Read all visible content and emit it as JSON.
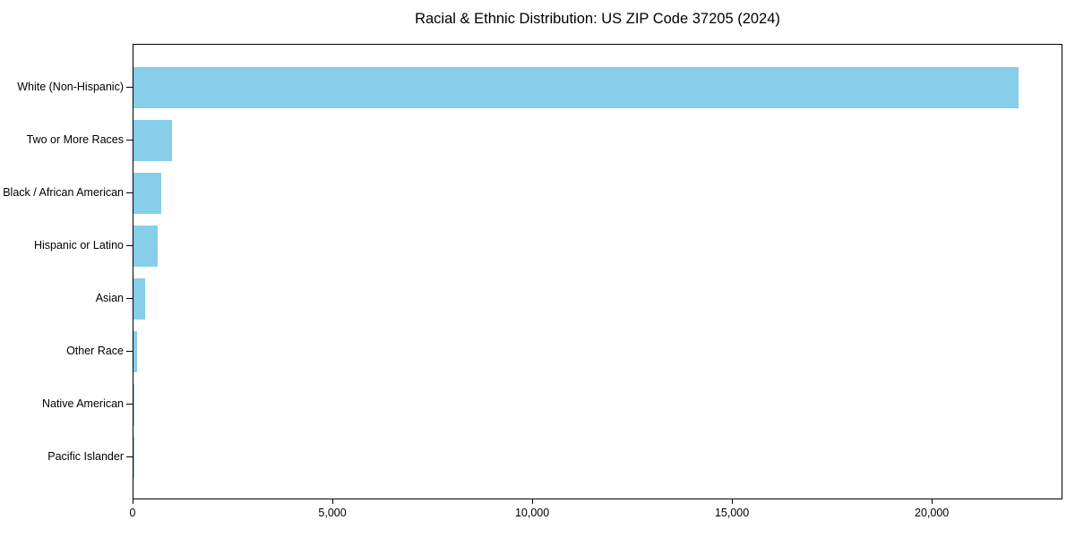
{
  "title": "Racial & Ethnic Distribution: US ZIP Code 37205 (2024)",
  "chart_data": {
    "type": "bar",
    "orientation": "horizontal",
    "title": "Racial & Ethnic Distribution: US ZIP Code 37205 (2024)",
    "xlabel": "",
    "ylabel": "",
    "categories": [
      "White (Non-Hispanic)",
      "Two or More Races",
      "Black / African American",
      "Hispanic or Latino",
      "Asian",
      "Other Race",
      "Native American",
      "Pacific Islander"
    ],
    "values": [
      22150,
      965,
      700,
      600,
      290,
      95,
      8,
      3
    ],
    "xlim": [
      0,
      23270
    ],
    "x_ticks": [
      0,
      5000,
      10000,
      15000,
      20000
    ],
    "x_tick_labels": [
      "0",
      "5,000",
      "10,000",
      "15,000",
      "20,000"
    ],
    "bar_color": "#87CEEB",
    "spine_color": "#000000",
    "grid": false,
    "legend": null
  }
}
